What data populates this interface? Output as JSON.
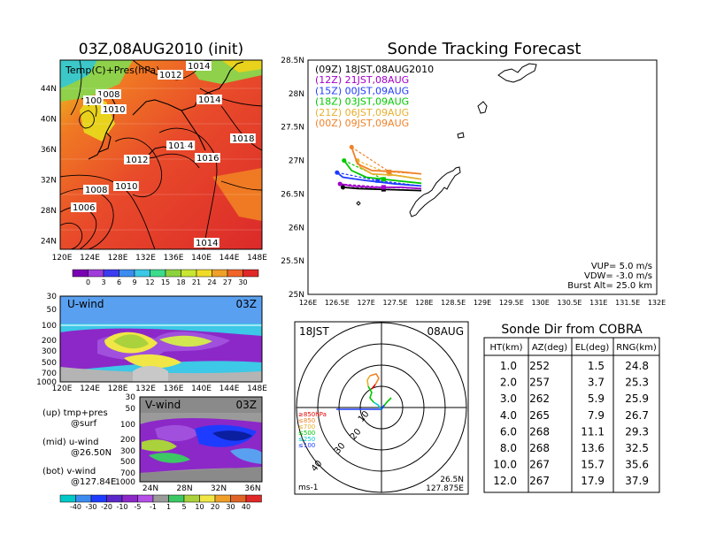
{
  "left_title": "03Z,08AUG2010 (init)",
  "map_panel": {
    "label": "Temp(C)+Pres(hPa)",
    "lat_labels": [
      "44N",
      "40N",
      "36N",
      "32N",
      "28N",
      "24N"
    ],
    "lon_labels": [
      "120E",
      "124E",
      "128E",
      "132E",
      "136E",
      "140E",
      "144E",
      "148E"
    ],
    "contour_labels": [
      "1014",
      "1012",
      "1008",
      "100",
      "1010",
      "1014",
      "1014",
      "4",
      "1016",
      "1018",
      "1012",
      "1010",
      "1008",
      "1006",
      "1014"
    ],
    "colorbar_labels": [
      "0",
      "3",
      "6",
      "9",
      "12",
      "15",
      "18",
      "21",
      "24",
      "27",
      "30"
    ]
  },
  "u_panel": {
    "label": "U-wind",
    "time": "03Z",
    "y_labels": [
      "30",
      "50",
      "100",
      "200",
      "300",
      "500",
      "700",
      "1000"
    ],
    "x_labels": [
      "120E",
      "124E",
      "128E",
      "132E",
      "136E",
      "140E",
      "144E",
      "148E"
    ]
  },
  "v_panel": {
    "label": "V-wind",
    "time": "03Z",
    "y_labels": [
      "30",
      "50",
      "100",
      "200",
      "300",
      "500",
      "700",
      "1000"
    ],
    "x_labels": [
      "24N",
      "28N",
      "32N",
      "36N"
    ]
  },
  "legend_notes": [
    {
      "a": "(up) tmp+pres",
      "b": "@surf"
    },
    {
      "a": "(mid) u-wind",
      "b": "@26.50N"
    },
    {
      "a": "(bot) v-wind",
      "b": "@127.84E"
    }
  ],
  "wind_colorbar_labels": [
    "-40",
    "-30",
    "-20",
    "-10",
    "-5",
    "-1",
    "1",
    "5",
    "10",
    "20",
    "30",
    "40"
  ],
  "tracking": {
    "title": "Sonde Tracking Forecast",
    "y_labels": [
      "28.5N",
      "28N",
      "27.5N",
      "27N",
      "26.5N",
      "26N",
      "25.5N",
      "25N"
    ],
    "x_labels": [
      "126E",
      "126.5E",
      "127E",
      "127.5E",
      "128E",
      "128.5E",
      "129E",
      "129.5E",
      "130E",
      "130.5E",
      "131E",
      "131.5E",
      "132E"
    ],
    "legend": [
      {
        "text": "(09Z) 18JST,08AUG2010",
        "color": "#000000"
      },
      {
        "text": "(12Z) 21JST,08AUG",
        "color": "#a000c8"
      },
      {
        "text": "(15Z) 00JST,09AUG",
        "color": "#1e3cff"
      },
      {
        "text": "(18Z) 03JST,09AUG",
        "color": "#00c800"
      },
      {
        "text": "(21Z) 06JST,09AUG",
        "color": "#e6af2d"
      },
      {
        "text": "(00Z) 09JST,09AUG",
        "color": "#f08228"
      }
    ],
    "params": [
      "VUP= 5.0 m/s",
      "VDW= -3.0 m/s",
      "Burst Alt= 25.0 km"
    ],
    "tracks": [
      {
        "color": "#000000",
        "ascent": [
          [
            127.95,
            26.55
          ],
          [
            127.6,
            26.56
          ],
          [
            127.2,
            26.57
          ],
          [
            126.85,
            26.58
          ],
          [
            126.6,
            26.6
          ]
        ],
        "descent": [
          [
            126.6,
            26.6
          ],
          [
            127.3,
            26.57
          ],
          [
            127.95,
            26.55
          ]
        ]
      },
      {
        "color": "#a000c8",
        "ascent": [
          [
            127.95,
            26.58
          ],
          [
            127.6,
            26.6
          ],
          [
            127.1,
            26.6
          ],
          [
            126.75,
            26.62
          ],
          [
            126.55,
            26.65
          ]
        ],
        "descent": [
          [
            126.55,
            26.65
          ],
          [
            127.3,
            26.6
          ],
          [
            127.95,
            26.58
          ]
        ]
      },
      {
        "color": "#1e3cff",
        "ascent": [
          [
            127.95,
            26.62
          ],
          [
            127.5,
            26.65
          ],
          [
            127.0,
            26.7
          ],
          [
            126.6,
            26.75
          ],
          [
            126.5,
            26.82
          ]
        ],
        "descent": [
          [
            126.5,
            26.82
          ],
          [
            127.2,
            26.7
          ],
          [
            127.95,
            26.62
          ]
        ]
      },
      {
        "color": "#00c800",
        "ascent": [
          [
            127.95,
            26.66
          ],
          [
            127.5,
            26.7
          ],
          [
            127.0,
            26.75
          ],
          [
            126.75,
            26.85
          ],
          [
            126.62,
            27.0
          ]
        ],
        "descent": [
          [
            126.62,
            27.0
          ],
          [
            127.3,
            26.72
          ],
          [
            127.95,
            26.66
          ]
        ]
      },
      {
        "color": "#e6af2d",
        "ascent": [
          [
            127.95,
            26.72
          ],
          [
            127.5,
            26.78
          ],
          [
            127.1,
            26.8
          ],
          [
            126.9,
            26.9
          ],
          [
            126.85,
            27.0
          ]
        ],
        "descent": [
          [
            126.85,
            27.0
          ],
          [
            127.4,
            26.8
          ],
          [
            127.95,
            26.72
          ]
        ]
      },
      {
        "color": "#f08228",
        "ascent": [
          [
            127.95,
            26.8
          ],
          [
            127.6,
            26.83
          ],
          [
            127.1,
            26.85
          ],
          [
            126.85,
            26.95
          ],
          [
            126.75,
            27.2
          ]
        ],
        "descent": [
          [
            126.75,
            27.2
          ],
          [
            127.4,
            26.83
          ],
          [
            127.95,
            26.8
          ]
        ]
      }
    ]
  },
  "polar": {
    "time_label": "18JST",
    "date_label": "08AUG",
    "ring_labels": [
      "10",
      "20",
      "30",
      "40"
    ],
    "pressure_labels": [
      {
        "text": "≥850hPa",
        "color": "#e60000"
      },
      {
        "text": "≤850",
        "color": "#f08228"
      },
      {
        "text": "≤700",
        "color": "#e6af2d"
      },
      {
        "text": "≤500",
        "color": "#00c800"
      },
      {
        "text": "≤250",
        "color": "#00c8c8"
      },
      {
        "text": "≤100",
        "color": "#1e3cff"
      }
    ],
    "units": "ms-1",
    "loc_lat": "26.5N",
    "loc_lon": "127.875E"
  },
  "table": {
    "title": "Sonde Dir from COBRA",
    "headers": [
      "HT(km)",
      "AZ(deg)",
      "EL(deg)",
      "RNG(km)"
    ],
    "rows": [
      [
        "1.0",
        "252",
        "1.5",
        "24.8"
      ],
      [
        "2.0",
        "257",
        "3.7",
        "25.3"
      ],
      [
        "3.0",
        "262",
        "5.9",
        "25.9"
      ],
      [
        "4.0",
        "265",
        "7.9",
        "26.7"
      ],
      [
        "6.0",
        "268",
        "11.1",
        "29.3"
      ],
      [
        "8.0",
        "268",
        "13.6",
        "32.5"
      ],
      [
        "10.0",
        "267",
        "15.7",
        "35.6"
      ],
      [
        "12.0",
        "267",
        "17.9",
        "37.9"
      ]
    ]
  }
}
